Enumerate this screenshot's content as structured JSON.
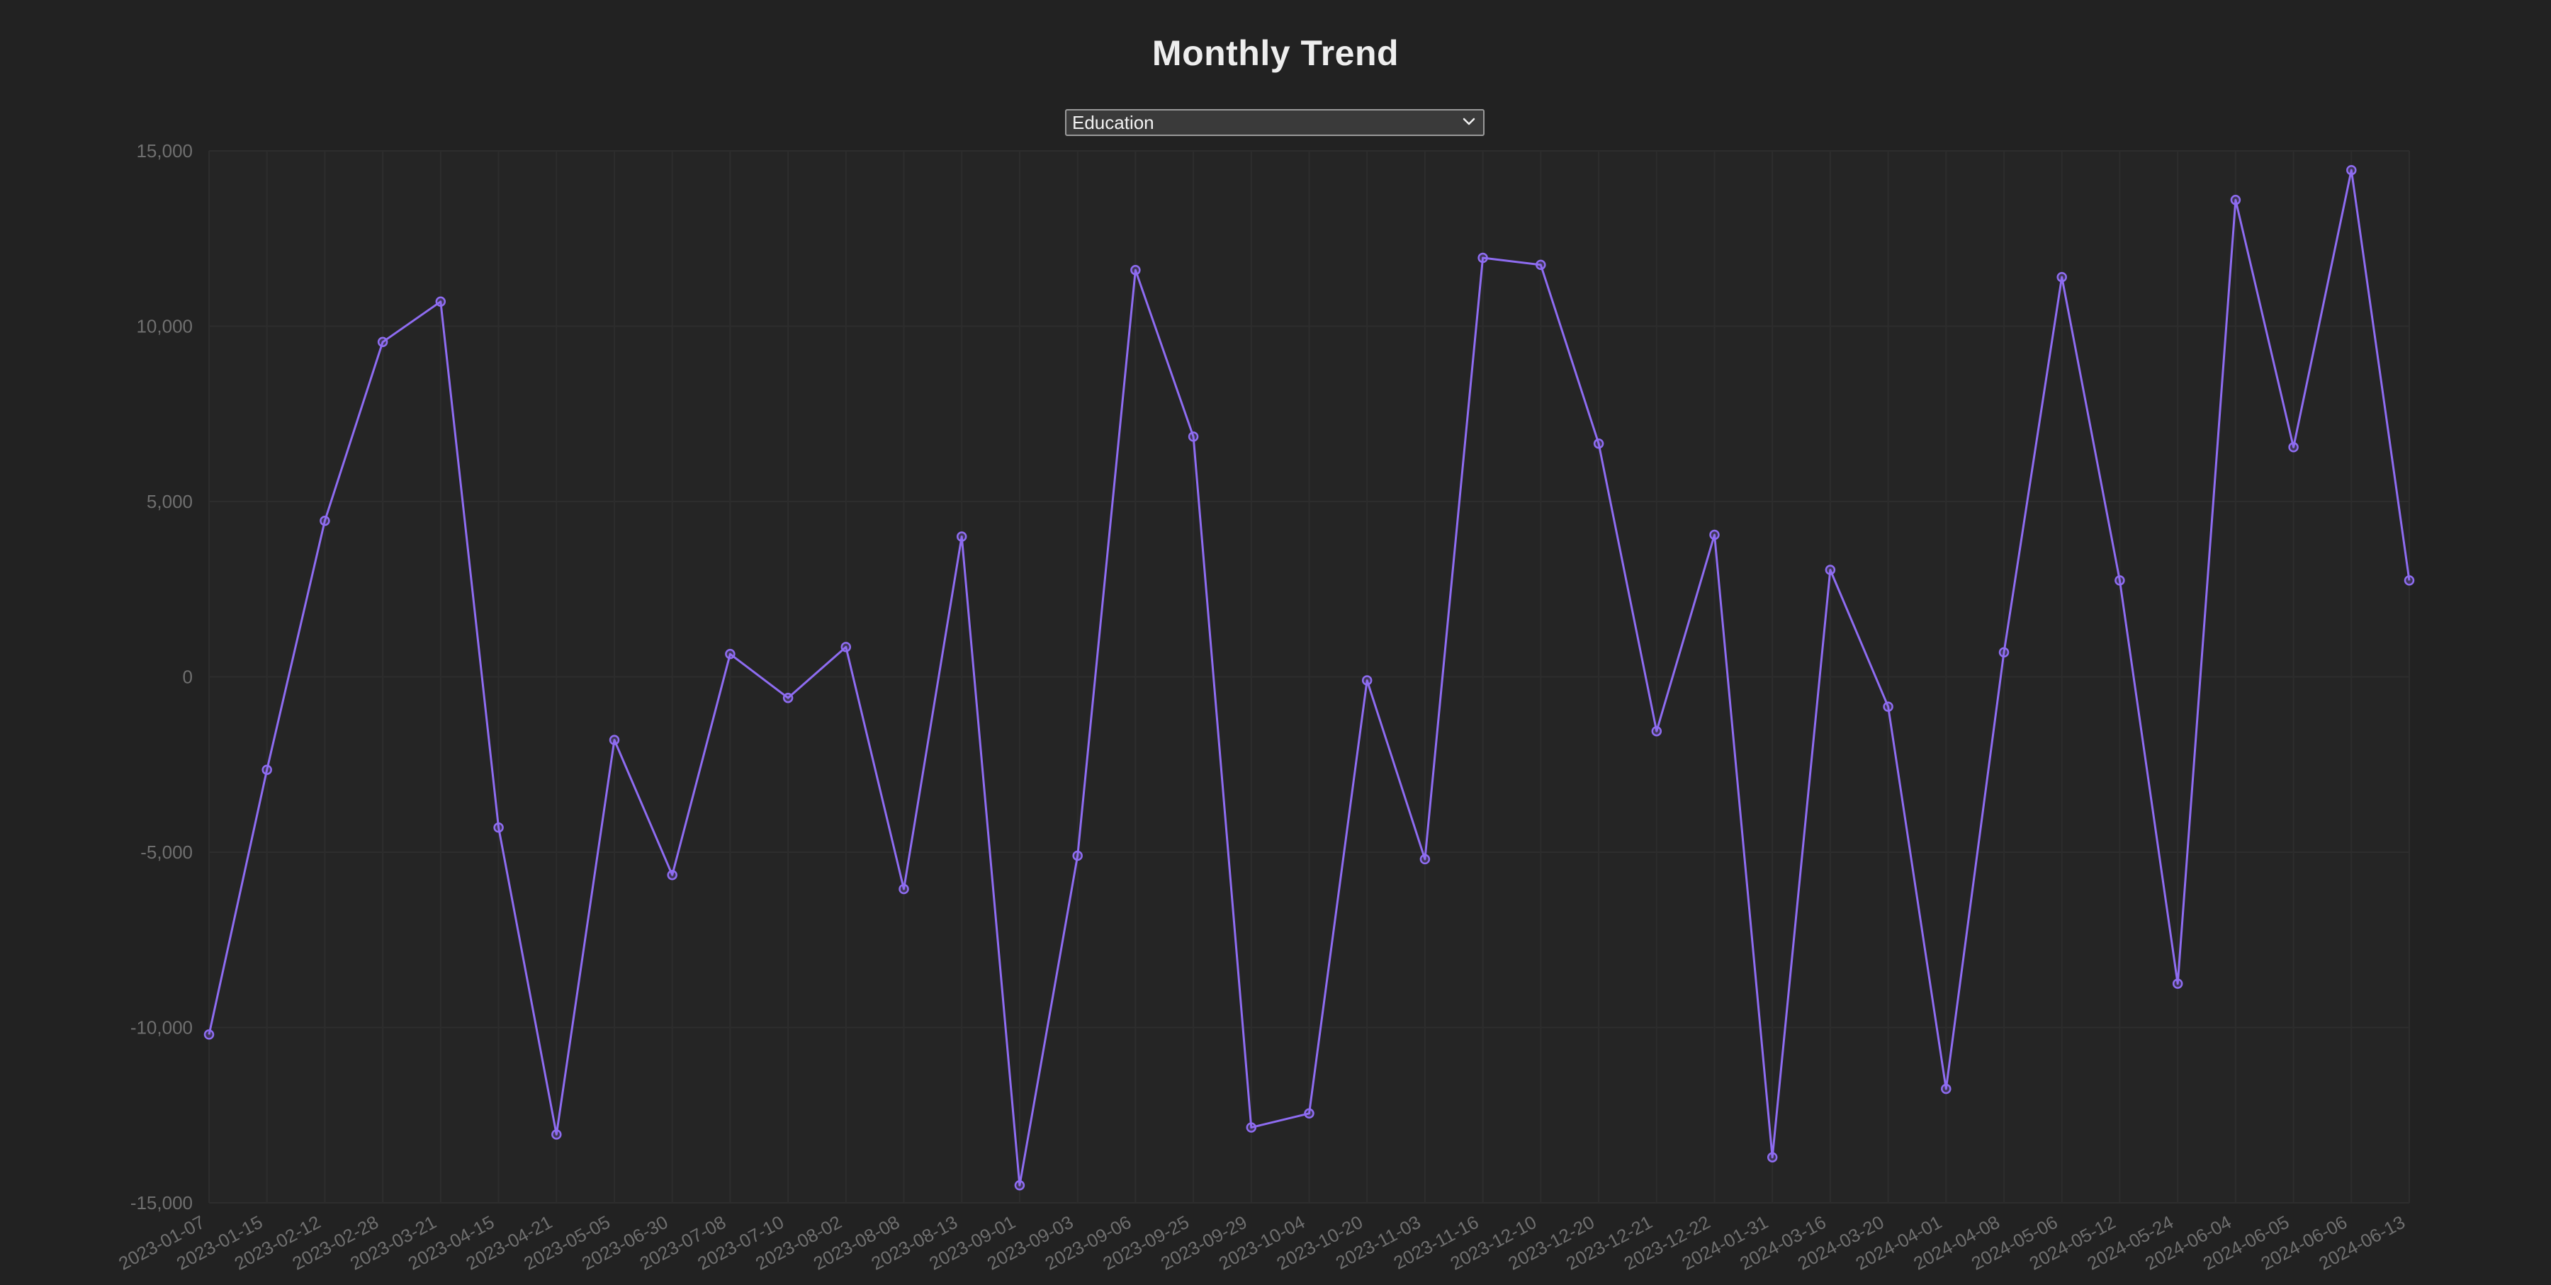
{
  "page": {
    "title": "Monthly Trend"
  },
  "controls": {
    "select_value": "Education",
    "select_options": [
      "Education"
    ]
  },
  "theme": {
    "background": "#222222",
    "plot_background": "#252525",
    "grid_color": "#2d2d2d",
    "line_color": "#8e6cf1",
    "marker_color": "#8e6cf1",
    "text_color": "#eeeeee",
    "tick_color": "#6f6f6f"
  },
  "icons": {
    "dropdown": "chevron-down-icon"
  },
  "chart_data": {
    "type": "line",
    "title": "Monthly Trend",
    "xlabel": "",
    "ylabel": "",
    "ylim": [
      -15000,
      15000
    ],
    "yticks": [
      -15000,
      -10000,
      -5000,
      0,
      5000,
      10000,
      15000
    ],
    "ytick_labels": [
      "-15,000",
      "-10,000",
      "-5,000",
      "0",
      "5,000",
      "10,000",
      "15,000"
    ],
    "grid": true,
    "x": [
      "2023-01-07",
      "2023-01-15",
      "2023-02-12",
      "2023-02-28",
      "2023-03-21",
      "2023-04-15",
      "2023-04-21",
      "2023-05-05",
      "2023-06-30",
      "2023-07-08",
      "2023-07-10",
      "2023-08-02",
      "2023-08-08",
      "2023-08-13",
      "2023-09-01",
      "2023-09-03",
      "2023-09-06",
      "2023-09-25",
      "2023-09-29",
      "2023-10-04",
      "2023-10-20",
      "2023-11-03",
      "2023-11-16",
      "2023-12-10",
      "2023-12-20",
      "2023-12-21",
      "2023-12-22",
      "2024-01-31",
      "2024-03-16",
      "2024-03-20",
      "2024-04-01",
      "2024-04-08",
      "2024-05-06",
      "2024-05-12",
      "2024-05-24",
      "2024-06-04",
      "2024-06-05",
      "2024-06-06",
      "2024-06-13"
    ],
    "series": [
      {
        "values": [
          -10200,
          -2650,
          4450,
          9550,
          10700,
          -4300,
          -13050,
          -1800,
          -5650,
          650,
          -600,
          850,
          -6050,
          4000,
          -14500,
          -5100,
          11600,
          6850,
          -12850,
          -12450,
          -100,
          -5200,
          11950,
          11750,
          6650,
          -1550,
          4050,
          -13700,
          3050,
          -850,
          -11750,
          700,
          11400,
          2750,
          -8750,
          13600,
          6550,
          14450,
          2750
        ]
      }
    ]
  }
}
